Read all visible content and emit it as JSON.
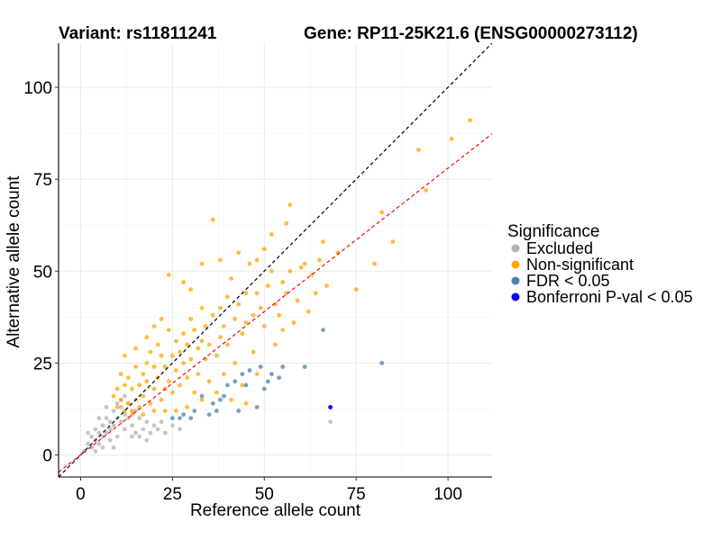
{
  "chart_data": {
    "type": "scatter",
    "title_left": "Variant: rs11811241",
    "title_right": "Gene: RP11-25K21.6 (ENSG00000273112)",
    "xlabel": "Reference allele count",
    "ylabel": "Alternative allele count",
    "xlim": [
      -6,
      112
    ],
    "ylim": [
      -6,
      112
    ],
    "x_ticks": [
      0,
      25,
      50,
      75,
      100
    ],
    "y_ticks": [
      0,
      25,
      50,
      75,
      100
    ],
    "grid": true,
    "legend_placement": "right",
    "legend_title": "Significance",
    "reference_lines": [
      {
        "slope": 1.0,
        "intercept": 0,
        "color": "#000000",
        "style": "dashed"
      },
      {
        "slope": 0.78,
        "intercept": 0,
        "color": "#ff0000",
        "style": "dashed"
      }
    ],
    "series": [
      {
        "name": "Excluded",
        "color": "#b3b3b3",
        "points": [
          [
            1,
            1
          ],
          [
            2,
            3
          ],
          [
            3,
            2
          ],
          [
            3,
            5
          ],
          [
            4,
            4
          ],
          [
            5,
            3
          ],
          [
            5,
            6
          ],
          [
            6,
            5
          ],
          [
            6,
            8
          ],
          [
            7,
            6
          ],
          [
            7,
            10
          ],
          [
            8,
            7
          ],
          [
            8,
            9
          ],
          [
            9,
            8
          ],
          [
            9,
            12
          ],
          [
            10,
            10
          ],
          [
            10,
            5
          ],
          [
            11,
            9
          ],
          [
            11,
            13
          ],
          [
            12,
            11
          ],
          [
            12,
            7
          ],
          [
            13,
            14
          ],
          [
            13,
            10
          ],
          [
            14,
            8
          ],
          [
            15,
            12
          ],
          [
            15,
            6
          ],
          [
            16,
            10
          ],
          [
            17,
            7
          ],
          [
            18,
            9
          ],
          [
            19,
            6
          ],
          [
            20,
            8
          ],
          [
            21,
            7
          ],
          [
            22,
            9
          ],
          [
            23,
            6
          ],
          [
            25,
            8
          ],
          [
            27,
            7
          ],
          [
            2,
            6
          ],
          [
            4,
            1
          ],
          [
            6,
            2
          ],
          [
            8,
            4
          ],
          [
            9,
            2
          ],
          [
            10,
            14
          ],
          [
            7,
            13
          ],
          [
            5,
            10
          ],
          [
            11,
            15
          ],
          [
            12,
            16
          ],
          [
            4,
            7
          ],
          [
            14,
            5
          ],
          [
            16,
            5
          ],
          [
            18,
            4
          ],
          [
            68,
            9
          ]
        ]
      },
      {
        "name": "Non-significant",
        "color": "#ffa500",
        "points": [
          [
            106,
            91
          ],
          [
            101,
            86
          ],
          [
            92,
            83
          ],
          [
            94,
            72
          ],
          [
            85,
            58
          ],
          [
            82,
            66
          ],
          [
            80,
            52
          ],
          [
            75,
            45
          ],
          [
            70,
            55
          ],
          [
            67,
            46
          ],
          [
            66,
            58
          ],
          [
            63,
            49
          ],
          [
            61,
            52
          ],
          [
            59,
            42
          ],
          [
            57,
            50
          ],
          [
            56,
            44
          ],
          [
            55,
            47
          ],
          [
            54,
            38
          ],
          [
            53,
            41
          ],
          [
            52,
            50
          ],
          [
            51,
            46
          ],
          [
            50,
            56
          ],
          [
            50,
            35
          ],
          [
            49,
            40
          ],
          [
            48,
            44
          ],
          [
            47,
            38
          ],
          [
            46,
            52
          ],
          [
            45,
            36
          ],
          [
            45,
            44
          ],
          [
            44,
            33
          ],
          [
            43,
            41
          ],
          [
            42,
            37
          ],
          [
            41,
            48
          ],
          [
            40,
            30
          ],
          [
            40,
            43
          ],
          [
            39,
            35
          ],
          [
            38,
            32
          ],
          [
            38,
            40
          ],
          [
            37,
            27
          ],
          [
            36,
            38
          ],
          [
            36,
            64
          ],
          [
            35,
            30
          ],
          [
            34,
            26
          ],
          [
            34,
            35
          ],
          [
            33,
            40
          ],
          [
            33,
            31
          ],
          [
            32,
            22
          ],
          [
            32,
            29
          ],
          [
            31,
            34
          ],
          [
            30,
            26
          ],
          [
            30,
            37
          ],
          [
            29,
            21
          ],
          [
            29,
            30
          ],
          [
            28,
            25
          ],
          [
            28,
            33
          ],
          [
            27,
            19
          ],
          [
            27,
            28
          ],
          [
            26,
            23
          ],
          [
            26,
            31
          ],
          [
            25,
            17
          ],
          [
            25,
            27
          ],
          [
            24,
            20
          ],
          [
            24,
            34
          ],
          [
            23,
            24
          ],
          [
            23,
            18
          ],
          [
            22,
            15
          ],
          [
            22,
            27
          ],
          [
            21,
            21
          ],
          [
            21,
            30
          ],
          [
            20,
            18
          ],
          [
            20,
            24
          ],
          [
            19,
            14
          ],
          [
            19,
            28
          ],
          [
            18,
            20
          ],
          [
            18,
            25
          ],
          [
            17,
            16
          ],
          [
            17,
            22
          ],
          [
            16,
            13
          ],
          [
            16,
            19
          ],
          [
            15,
            15
          ],
          [
            15,
            24
          ],
          [
            14,
            12
          ],
          [
            14,
            18
          ],
          [
            13,
            14
          ],
          [
            13,
            21
          ],
          [
            12,
            12
          ],
          [
            12,
            19
          ],
          [
            11,
            15
          ],
          [
            11,
            22
          ],
          [
            10,
            13
          ],
          [
            10,
            18
          ],
          [
            9,
            16
          ],
          [
            12,
            27
          ],
          [
            15,
            29
          ],
          [
            18,
            32
          ],
          [
            20,
            35
          ],
          [
            22,
            37
          ],
          [
            24,
            49
          ],
          [
            28,
            47
          ],
          [
            30,
            45
          ],
          [
            33,
            52
          ],
          [
            38,
            53
          ],
          [
            43,
            55
          ],
          [
            48,
            53
          ],
          [
            52,
            60
          ],
          [
            56,
            63
          ],
          [
            57,
            68
          ],
          [
            60,
            51
          ],
          [
            65,
            53
          ],
          [
            31,
            17
          ],
          [
            35,
            20
          ],
          [
            39,
            22
          ],
          [
            42,
            25
          ],
          [
            44,
            19
          ],
          [
            47,
            28
          ],
          [
            41,
            15
          ],
          [
            37,
            17
          ],
          [
            33,
            15
          ],
          [
            29,
            13
          ],
          [
            26,
            12
          ],
          [
            23,
            12
          ],
          [
            20,
            12
          ],
          [
            17,
            11
          ],
          [
            14,
            11
          ],
          [
            45,
            14
          ],
          [
            48,
            22
          ],
          [
            53,
            30
          ],
          [
            55,
            34
          ],
          [
            58,
            36
          ],
          [
            62,
            39
          ],
          [
            64,
            44
          ]
        ]
      },
      {
        "name": "FDR < 0.05",
        "color": "#4682b4",
        "points": [
          [
            82,
            25
          ],
          [
            66,
            34
          ],
          [
            61,
            24
          ],
          [
            55,
            24
          ],
          [
            54,
            21
          ],
          [
            51,
            20
          ],
          [
            50,
            18
          ],
          [
            48,
            13
          ],
          [
            46,
            23
          ],
          [
            44,
            22
          ],
          [
            42,
            20
          ],
          [
            40,
            19
          ],
          [
            39,
            16
          ],
          [
            38,
            15
          ],
          [
            37,
            12
          ],
          [
            36,
            14
          ],
          [
            35,
            11
          ],
          [
            33,
            16
          ],
          [
            31,
            12
          ],
          [
            30,
            10
          ],
          [
            28,
            11
          ],
          [
            27,
            10
          ],
          [
            25,
            10
          ],
          [
            49,
            24
          ],
          [
            45,
            19
          ],
          [
            43,
            12
          ],
          [
            52,
            22
          ]
        ]
      },
      {
        "name": "Bonferroni P-val < 0.05",
        "color": "#0000ff",
        "points": [
          [
            68,
            13
          ]
        ]
      }
    ]
  }
}
